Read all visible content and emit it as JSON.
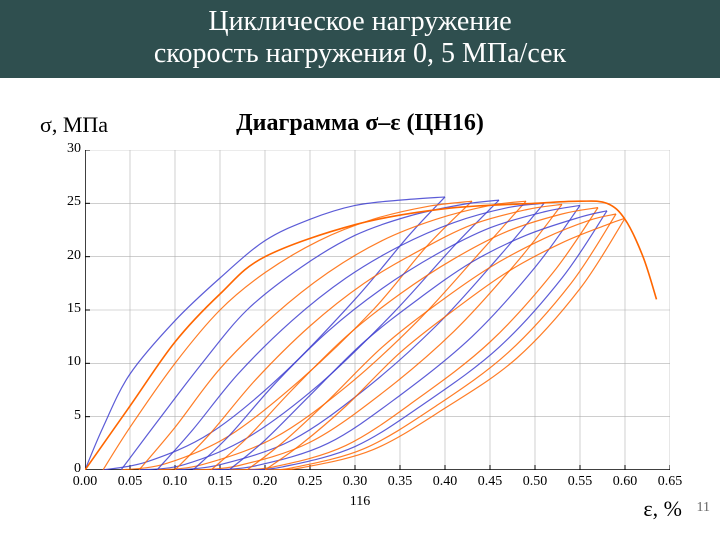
{
  "header": {
    "line1": "Циклическое нагружение",
    "line2": "скорость нагружения  0, 5 МПа/сек",
    "bg_color": "#2f4f4f",
    "text_color": "#ffffff"
  },
  "chart": {
    "title": "Диаграмма σ–ε  (ЦН16)",
    "title_fontsize": 24,
    "ylabel": "σ, МПа",
    "ylabel_fontsize": 22,
    "xlabel": "ε, %",
    "xlabel_fontsize": 22,
    "xlim": [
      0.0,
      0.65
    ],
    "ylim": [
      0,
      30
    ],
    "xticks": [
      0.0,
      0.05,
      0.1,
      0.15,
      0.2,
      0.25,
      0.3,
      0.35,
      0.4,
      0.45,
      0.5,
      0.55,
      0.6,
      0.65
    ],
    "yticks": [
      0,
      5,
      10,
      15,
      20,
      25,
      30
    ],
    "xtick_labels": [
      "0.00",
      "0.05",
      "0.10",
      "0.15",
      "0.20",
      "0.25",
      "0.30",
      "0.35",
      "0.40",
      "0.45",
      "0.50",
      "0.55",
      "0.60",
      "0.65"
    ],
    "ytick_labels": [
      "0",
      "5",
      "10",
      "15",
      "20",
      "25",
      "30"
    ],
    "grid_color": "#b0b0b0",
    "axis_color": "#000000",
    "tick_fontsize": 14,
    "background_color": "#ffffff",
    "line_width": 1.2,
    "series_orange": "#ff6600",
    "series_blue": "#4040d0",
    "cycles": [
      {
        "color": "#4040d0",
        "load": [
          [
            0.0,
            0.0
          ],
          [
            0.02,
            4.0
          ],
          [
            0.05,
            9.0
          ],
          [
            0.1,
            14.0
          ],
          [
            0.15,
            18.0
          ],
          [
            0.2,
            21.5
          ],
          [
            0.25,
            23.5
          ],
          [
            0.3,
            24.8
          ],
          [
            0.35,
            25.3
          ],
          [
            0.4,
            25.6
          ]
        ],
        "unload": [
          [
            0.4,
            25.6
          ],
          [
            0.36,
            22.0
          ],
          [
            0.3,
            16.0
          ],
          [
            0.22,
            9.0
          ],
          [
            0.14,
            3.5
          ],
          [
            0.07,
            0.8
          ],
          [
            0.02,
            0.0
          ]
        ]
      },
      {
        "color": "#ff6600",
        "load": [
          [
            0.02,
            0.0
          ],
          [
            0.05,
            4.0
          ],
          [
            0.1,
            10.0
          ],
          [
            0.15,
            15.0
          ],
          [
            0.2,
            18.5
          ],
          [
            0.26,
            21.5
          ],
          [
            0.32,
            23.5
          ],
          [
            0.38,
            24.7
          ],
          [
            0.43,
            25.2
          ]
        ],
        "unload": [
          [
            0.43,
            25.2
          ],
          [
            0.38,
            21.0
          ],
          [
            0.32,
            15.0
          ],
          [
            0.24,
            8.5
          ],
          [
            0.16,
            3.2
          ],
          [
            0.09,
            0.6
          ],
          [
            0.04,
            0.0
          ]
        ]
      },
      {
        "color": "#4040d0",
        "load": [
          [
            0.04,
            0.0
          ],
          [
            0.08,
            4.5
          ],
          [
            0.13,
            10.0
          ],
          [
            0.18,
            15.0
          ],
          [
            0.24,
            19.0
          ],
          [
            0.3,
            22.0
          ],
          [
            0.36,
            23.8
          ],
          [
            0.42,
            24.9
          ],
          [
            0.46,
            25.3
          ]
        ],
        "unload": [
          [
            0.46,
            25.3
          ],
          [
            0.41,
            21.0
          ],
          [
            0.34,
            14.5
          ],
          [
            0.26,
            8.0
          ],
          [
            0.18,
            3.0
          ],
          [
            0.11,
            0.5
          ],
          [
            0.06,
            0.0
          ]
        ]
      },
      {
        "color": "#ff6600",
        "load": [
          [
            0.06,
            0.0
          ],
          [
            0.1,
            4.0
          ],
          [
            0.15,
            9.5
          ],
          [
            0.21,
            14.5
          ],
          [
            0.27,
            18.5
          ],
          [
            0.33,
            21.5
          ],
          [
            0.39,
            23.5
          ],
          [
            0.45,
            24.8
          ],
          [
            0.49,
            25.2
          ]
        ],
        "unload": [
          [
            0.49,
            25.2
          ],
          [
            0.44,
            20.5
          ],
          [
            0.37,
            14.0
          ],
          [
            0.29,
            7.8
          ],
          [
            0.21,
            3.0
          ],
          [
            0.13,
            0.5
          ],
          [
            0.08,
            0.0
          ]
        ]
      },
      {
        "color": "#4040d0",
        "load": [
          [
            0.08,
            0.0
          ],
          [
            0.12,
            3.8
          ],
          [
            0.17,
            9.0
          ],
          [
            0.23,
            14.0
          ],
          [
            0.29,
            18.0
          ],
          [
            0.35,
            21.0
          ],
          [
            0.41,
            23.2
          ],
          [
            0.47,
            24.6
          ],
          [
            0.51,
            25.0
          ]
        ],
        "unload": [
          [
            0.51,
            25.0
          ],
          [
            0.46,
            20.0
          ],
          [
            0.39,
            13.5
          ],
          [
            0.31,
            7.5
          ],
          [
            0.23,
            2.8
          ],
          [
            0.15,
            0.5
          ],
          [
            0.1,
            0.0
          ]
        ]
      },
      {
        "color": "#ff6600",
        "load": [
          [
            0.1,
            0.0
          ],
          [
            0.14,
            3.5
          ],
          [
            0.19,
            8.5
          ],
          [
            0.25,
            13.5
          ],
          [
            0.31,
            17.5
          ],
          [
            0.37,
            20.5
          ],
          [
            0.43,
            23.0
          ],
          [
            0.49,
            24.4
          ],
          [
            0.53,
            24.9
          ]
        ],
        "unload": [
          [
            0.53,
            24.9
          ],
          [
            0.48,
            19.5
          ],
          [
            0.41,
            13.0
          ],
          [
            0.33,
            7.2
          ],
          [
            0.25,
            2.6
          ],
          [
            0.17,
            0.4
          ],
          [
            0.12,
            0.0
          ]
        ]
      },
      {
        "color": "#4040d0",
        "load": [
          [
            0.12,
            0.0
          ],
          [
            0.16,
            3.2
          ],
          [
            0.21,
            8.0
          ],
          [
            0.27,
            13.0
          ],
          [
            0.33,
            17.0
          ],
          [
            0.39,
            20.2
          ],
          [
            0.45,
            22.7
          ],
          [
            0.51,
            24.2
          ],
          [
            0.55,
            24.8
          ]
        ],
        "unload": [
          [
            0.55,
            24.8
          ],
          [
            0.5,
            19.0
          ],
          [
            0.43,
            12.5
          ],
          [
            0.35,
            7.0
          ],
          [
            0.27,
            2.5
          ],
          [
            0.19,
            0.4
          ],
          [
            0.14,
            0.0
          ]
        ]
      },
      {
        "color": "#ff6600",
        "load": [
          [
            0.14,
            0.0
          ],
          [
            0.18,
            3.0
          ],
          [
            0.23,
            7.5
          ],
          [
            0.29,
            12.5
          ],
          [
            0.35,
            16.5
          ],
          [
            0.41,
            19.8
          ],
          [
            0.47,
            22.4
          ],
          [
            0.53,
            24.0
          ],
          [
            0.57,
            24.6
          ]
        ],
        "unload": [
          [
            0.57,
            24.6
          ],
          [
            0.52,
            18.5
          ],
          [
            0.45,
            12.0
          ],
          [
            0.37,
            6.7
          ],
          [
            0.29,
            2.3
          ],
          [
            0.21,
            0.3
          ],
          [
            0.16,
            0.0
          ]
        ]
      },
      {
        "color": "#4040d0",
        "load": [
          [
            0.16,
            0.0
          ],
          [
            0.2,
            2.8
          ],
          [
            0.25,
            7.0
          ],
          [
            0.31,
            12.0
          ],
          [
            0.37,
            16.0
          ],
          [
            0.43,
            19.5
          ],
          [
            0.49,
            22.0
          ],
          [
            0.55,
            23.7
          ],
          [
            0.58,
            24.3
          ]
        ],
        "unload": [
          [
            0.58,
            24.3
          ],
          [
            0.53,
            18.0
          ],
          [
            0.46,
            11.5
          ],
          [
            0.38,
            6.4
          ],
          [
            0.3,
            2.2
          ],
          [
            0.22,
            0.3
          ],
          [
            0.18,
            0.0
          ]
        ]
      },
      {
        "color": "#ff6600",
        "load": [
          [
            0.18,
            0.0
          ],
          [
            0.22,
            2.6
          ],
          [
            0.27,
            6.5
          ],
          [
            0.33,
            11.5
          ],
          [
            0.39,
            15.5
          ],
          [
            0.45,
            19.0
          ],
          [
            0.51,
            21.7
          ],
          [
            0.56,
            23.4
          ],
          [
            0.59,
            24.0
          ]
        ],
        "unload": [
          [
            0.59,
            24.0
          ],
          [
            0.54,
            17.5
          ],
          [
            0.47,
            11.0
          ],
          [
            0.39,
            6.0
          ],
          [
            0.31,
            2.0
          ],
          [
            0.23,
            0.2
          ],
          [
            0.2,
            0.0
          ]
        ]
      },
      {
        "color": "#ff6600",
        "load": [
          [
            0.2,
            0.0
          ],
          [
            0.24,
            2.4
          ],
          [
            0.29,
            6.0
          ],
          [
            0.35,
            11.0
          ],
          [
            0.41,
            15.0
          ],
          [
            0.47,
            18.6
          ],
          [
            0.53,
            21.3
          ],
          [
            0.58,
            23.0
          ],
          [
            0.6,
            23.6
          ]
        ],
        "unload": [
          [
            0.6,
            23.6
          ],
          [
            0.55,
            17.0
          ],
          [
            0.48,
            10.5
          ],
          [
            0.4,
            5.8
          ],
          [
            0.32,
            1.9
          ],
          [
            0.24,
            0.2
          ],
          [
            0.21,
            0.0
          ]
        ]
      }
    ],
    "final_curve": {
      "color": "#ff6600",
      "pts": [
        [
          0.0,
          0.0
        ],
        [
          0.05,
          6.0
        ],
        [
          0.1,
          12.0
        ],
        [
          0.15,
          16.5
        ],
        [
          0.2,
          20.0
        ],
        [
          0.3,
          23.0
        ],
        [
          0.4,
          24.5
        ],
        [
          0.5,
          25.0
        ],
        [
          0.55,
          25.2
        ],
        [
          0.58,
          25.0
        ],
        [
          0.6,
          23.5
        ],
        [
          0.62,
          20.0
        ],
        [
          0.635,
          16.0
        ]
      ]
    }
  },
  "footer": {
    "page_center": "116",
    "slide_number": "11"
  }
}
